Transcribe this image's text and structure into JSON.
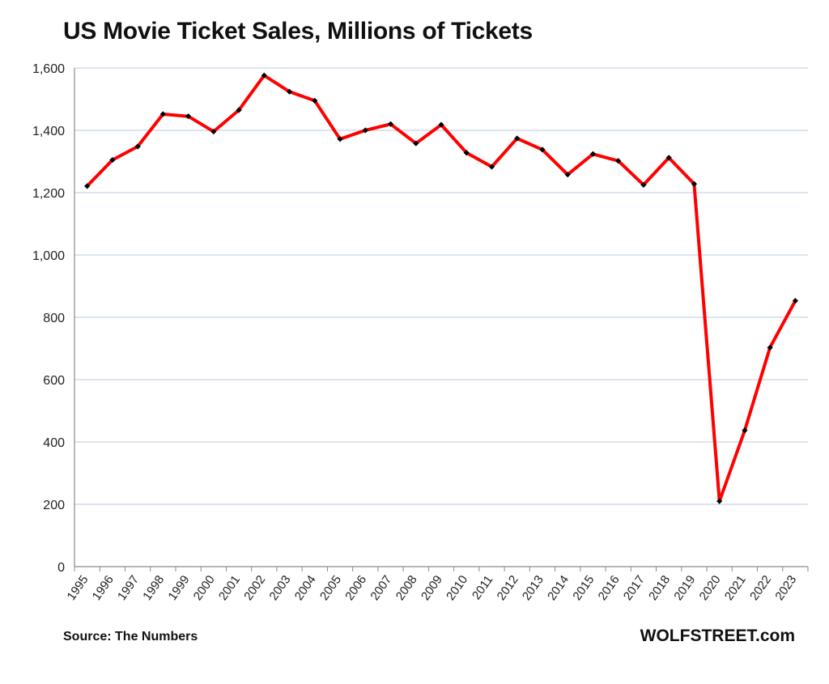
{
  "chart_data": {
    "type": "line",
    "title": "US Movie Ticket Sales, Millions of Tickets",
    "xlabel": "",
    "ylabel": "",
    "ylim": [
      0,
      1600
    ],
    "yticks": [
      "0",
      "200",
      "400",
      "600",
      "800",
      "1,000",
      "1,200",
      "1,400",
      "1,600"
    ],
    "categories": [
      "1995",
      "1996",
      "1997",
      "1998",
      "1999",
      "2000",
      "2001",
      "2002",
      "2003",
      "2004",
      "2005",
      "2006",
      "2007",
      "2008",
      "2009",
      "2010",
      "2011",
      "2012",
      "2013",
      "2014",
      "2015",
      "2016",
      "2017",
      "2018",
      "2019",
      "2020",
      "2021",
      "2022",
      "2023"
    ],
    "series": [
      {
        "values": [
          1221,
          1305,
          1348,
          1452,
          1445,
          1396,
          1465,
          1576,
          1524,
          1495,
          1372,
          1400,
          1420,
          1358,
          1418,
          1328,
          1283,
          1374,
          1338,
          1258,
          1324,
          1302,
          1225,
          1312,
          1228,
          210,
          437,
          703,
          853
        ],
        "color": "#ff0000",
        "marker_color": "#000000"
      }
    ],
    "grid": true,
    "legend": "none"
  },
  "footer": {
    "source": "Source: The Numbers",
    "brand": "WOLFSTREET.com"
  }
}
